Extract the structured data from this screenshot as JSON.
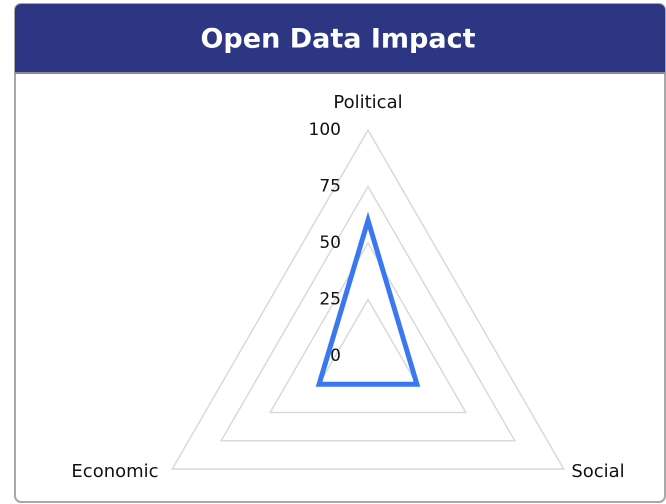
{
  "chart_data": {
    "type": "radar",
    "title": "Open Data Impact",
    "categories": [
      "Political",
      "Social",
      "Economic"
    ],
    "values": [
      60,
      25,
      25
    ],
    "color": "#3a78f2",
    "ylim": [
      0,
      100
    ],
    "yticks": [
      0,
      25,
      50,
      75,
      100
    ],
    "grid": true
  }
}
